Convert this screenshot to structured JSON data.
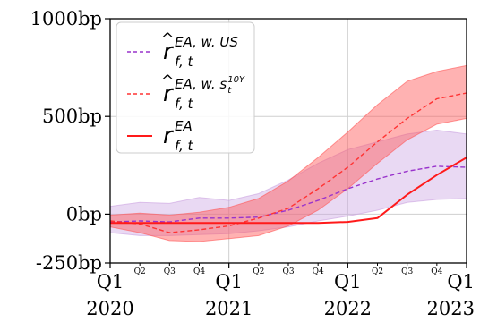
{
  "chart_data": {
    "type": "line",
    "x_axis": {
      "range": [
        2020.0,
        2023.0
      ],
      "major_ticks": [
        {
          "value": 2020.0,
          "label_top": "Q1",
          "label_bottom": "2020"
        },
        {
          "value": 2021.0,
          "label_top": "Q1",
          "label_bottom": "2021"
        },
        {
          "value": 2022.0,
          "label_top": "Q1",
          "label_bottom": "2022"
        },
        {
          "value": 2023.0,
          "label_top": "Q1",
          "label_bottom": "2023"
        }
      ],
      "minor_ticks": [
        {
          "value": 2020.25,
          "label": "Q2"
        },
        {
          "value": 2020.5,
          "label": "Q3"
        },
        {
          "value": 2020.75,
          "label": "Q4"
        },
        {
          "value": 2021.25,
          "label": "Q2"
        },
        {
          "value": 2021.5,
          "label": "Q3"
        },
        {
          "value": 2021.75,
          "label": "Q4"
        },
        {
          "value": 2022.25,
          "label": "Q2"
        },
        {
          "value": 2022.5,
          "label": "Q3"
        },
        {
          "value": 2022.75,
          "label": "Q4"
        }
      ]
    },
    "y_axis": {
      "range": [
        -250,
        1000
      ],
      "ticks": [
        {
          "value": -250,
          "label": "-250bp"
        },
        {
          "value": 0,
          "label": "0bp"
        },
        {
          "value": 500,
          "label": "500bp"
        },
        {
          "value": 1000,
          "label": "1000bp"
        }
      ]
    },
    "grid": true,
    "legend": {
      "placement": "top-left",
      "entries": [
        {
          "series": "r_us",
          "base": "r",
          "sub": "f, t",
          "sup": "EA, w. US",
          "hat": true
        },
        {
          "series": "r_s10",
          "base": "r",
          "sub": "f, t",
          "sup": "EA, w. s",
          "sup_sub": "t",
          "sup_sup": "10Y",
          "hat": true
        },
        {
          "series": "r_ea",
          "base": "r",
          "sub": "f, t",
          "sup": "EA",
          "hat": false
        }
      ]
    },
    "series": [
      {
        "id": "r_us",
        "color": "#9933cc",
        "style": "dashed",
        "x": [
          2020.0,
          2020.25,
          2020.5,
          2020.75,
          2021.0,
          2021.25,
          2021.5,
          2021.75,
          2022.0,
          2022.25,
          2022.5,
          2022.75,
          2023.0
        ],
        "values": [
          -40,
          -35,
          -40,
          -20,
          -20,
          -15,
          20,
          70,
          130,
          180,
          220,
          245,
          240
        ],
        "band_lower": [
          -95,
          -110,
          -110,
          -105,
          -100,
          -85,
          -65,
          -35,
          -10,
          20,
          60,
          75,
          80
        ],
        "band_upper": [
          40,
          60,
          55,
          85,
          70,
          105,
          175,
          260,
          330,
          370,
          410,
          430,
          410
        ]
      },
      {
        "id": "r_s10",
        "color": "#ff3333",
        "style": "dashed",
        "x": [
          2020.0,
          2020.25,
          2020.5,
          2020.75,
          2021.0,
          2021.25,
          2021.5,
          2021.75,
          2022.0,
          2022.25,
          2022.5,
          2022.75,
          2023.0
        ],
        "values": [
          -35,
          -50,
          -95,
          -80,
          -60,
          -20,
          30,
          130,
          240,
          370,
          490,
          590,
          620
        ],
        "band_lower": [
          -65,
          -95,
          -135,
          -140,
          -125,
          -110,
          -60,
          20,
          130,
          260,
          380,
          460,
          490
        ],
        "band_upper": [
          -5,
          5,
          -5,
          10,
          35,
          80,
          170,
          290,
          420,
          560,
          680,
          730,
          760
        ]
      },
      {
        "id": "r_ea",
        "color": "#ff1a1a",
        "style": "solid",
        "x": [
          2020.0,
          2020.25,
          2020.5,
          2020.75,
          2021.0,
          2021.25,
          2021.5,
          2021.75,
          2022.0,
          2022.25,
          2022.5,
          2022.75,
          2023.0
        ],
        "values": [
          -45,
          -45,
          -45,
          -45,
          -45,
          -45,
          -45,
          -45,
          -40,
          -20,
          100,
          200,
          290
        ]
      }
    ]
  }
}
